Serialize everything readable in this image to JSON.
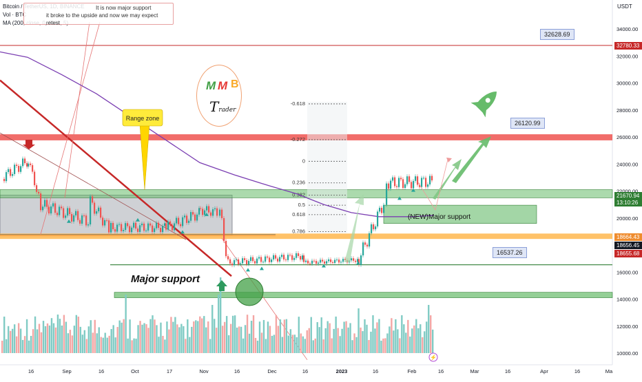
{
  "legend": {
    "symbol_line": "Bitcoin / TetherUS, 1D, BINANCE",
    "volume_line": "Vol · BTC",
    "ma_line": "MA (200, close, 0, SMA, 5)"
  },
  "note": {
    "line1": "It is now major support",
    "line2": "it broke to the upside and now we may expect retest"
  },
  "logo": {
    "m1": "M",
    "m2": "M",
    "b": "B",
    "t_big": "T",
    "t_small": "rader"
  },
  "annotations": {
    "range_zone": "Range zone",
    "major_support": "Major support",
    "new_major_support": "(NEW)Major support"
  },
  "badges": {
    "b1": "32628.69",
    "b2": "26120.99",
    "b3": "16537.26"
  },
  "price_labels": {
    "p1": "32780.33",
    "p2": "21670.94",
    "p2_timer": "13:10:26",
    "p3": "18664.43",
    "p4": "18656.45",
    "p5": "18655.68"
  },
  "colors": {
    "up": "#26a69a",
    "down": "#ef5350",
    "ma": "#7b3fb2",
    "zone_red": "#ef5350",
    "zone_green": "#66bb6a",
    "zone_orange": "#ffb74d"
  },
  "chart_data": {
    "type": "candlestick",
    "y_axis_unit": "USDT",
    "ylim": [
      9200,
      36500
    ],
    "y_ticks": [
      10000,
      12000,
      14000,
      16000,
      18000,
      20000,
      22000,
      24000,
      26000,
      28000,
      30000,
      32000,
      34000
    ],
    "x_ticks": [
      "16",
      "Sep",
      "16",
      "Oct",
      "17",
      "Nov",
      "16",
      "Dec",
      "16",
      "2023",
      "16",
      "Feb",
      "16",
      "Mar",
      "16",
      "Apr",
      "16",
      "Ma"
    ],
    "fibonacci": [
      {
        "level": "-0.618",
        "price": 28450
      },
      {
        "level": "-0.272",
        "price": 25800
      },
      {
        "level": "0",
        "price": 24200
      },
      {
        "level": "0.236",
        "price": 22600
      },
      {
        "level": "0.382",
        "price": 21700
      },
      {
        "level": "0.5",
        "price": 20950
      },
      {
        "level": "0.618",
        "price": 20250
      },
      {
        "level": "0.786",
        "price": 19000
      }
    ],
    "horizontal_lines": [
      32780.33,
      16537.26
    ],
    "zones": [
      {
        "name": "resistance",
        "from": 25750,
        "to": 26200
      },
      {
        "name": "support",
        "from": 21500,
        "to": 22100
      },
      {
        "name": "support",
        "from": 18450,
        "to": 18850
      },
      {
        "name": "major support",
        "from": 14100,
        "to": 14500
      }
    ]
  },
  "footer": {
    "bolt": "⚡"
  }
}
